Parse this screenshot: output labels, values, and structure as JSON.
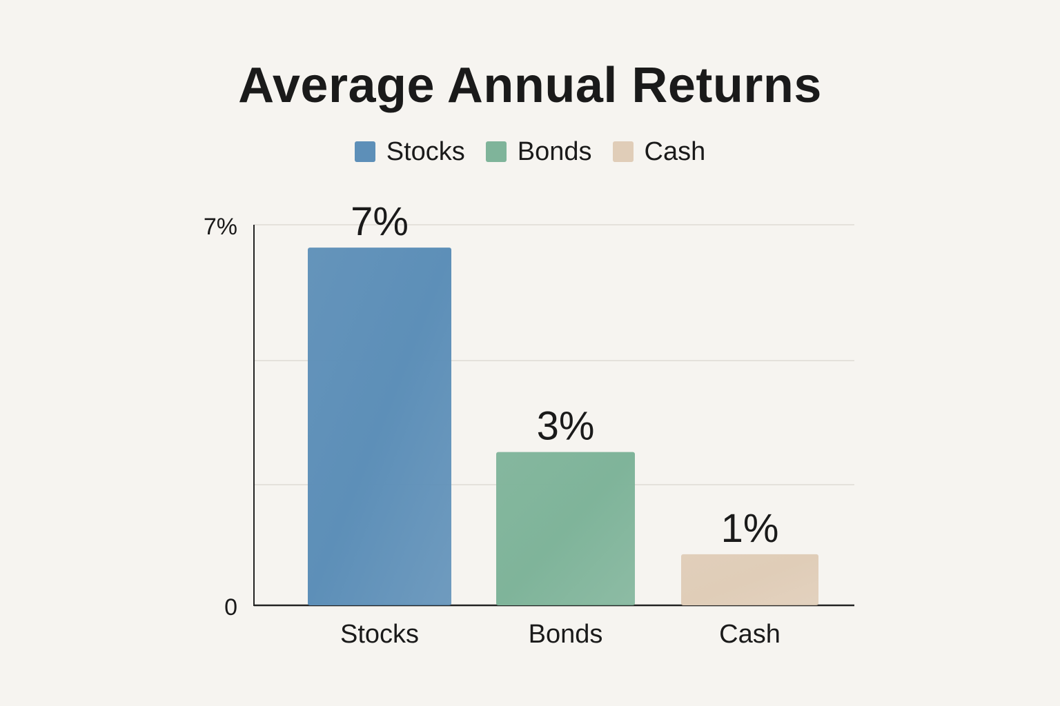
{
  "chart_data": {
    "type": "bar",
    "title": "Average Annual Returns",
    "categories": [
      "Stocks",
      "Bonds",
      "Cash"
    ],
    "values": [
      7,
      3,
      1
    ],
    "data_labels": [
      "7%",
      "3%",
      "1%"
    ],
    "ytick_labels": [
      "7%",
      "0"
    ],
    "legend": [
      "Stocks",
      "Bonds",
      "Cash"
    ],
    "legend_placement": "top-center",
    "colors": [
      "#5d8fb8",
      "#7fb49a",
      "#e0cdb8"
    ],
    "grid": true,
    "xlabel": "",
    "ylabel": ""
  }
}
